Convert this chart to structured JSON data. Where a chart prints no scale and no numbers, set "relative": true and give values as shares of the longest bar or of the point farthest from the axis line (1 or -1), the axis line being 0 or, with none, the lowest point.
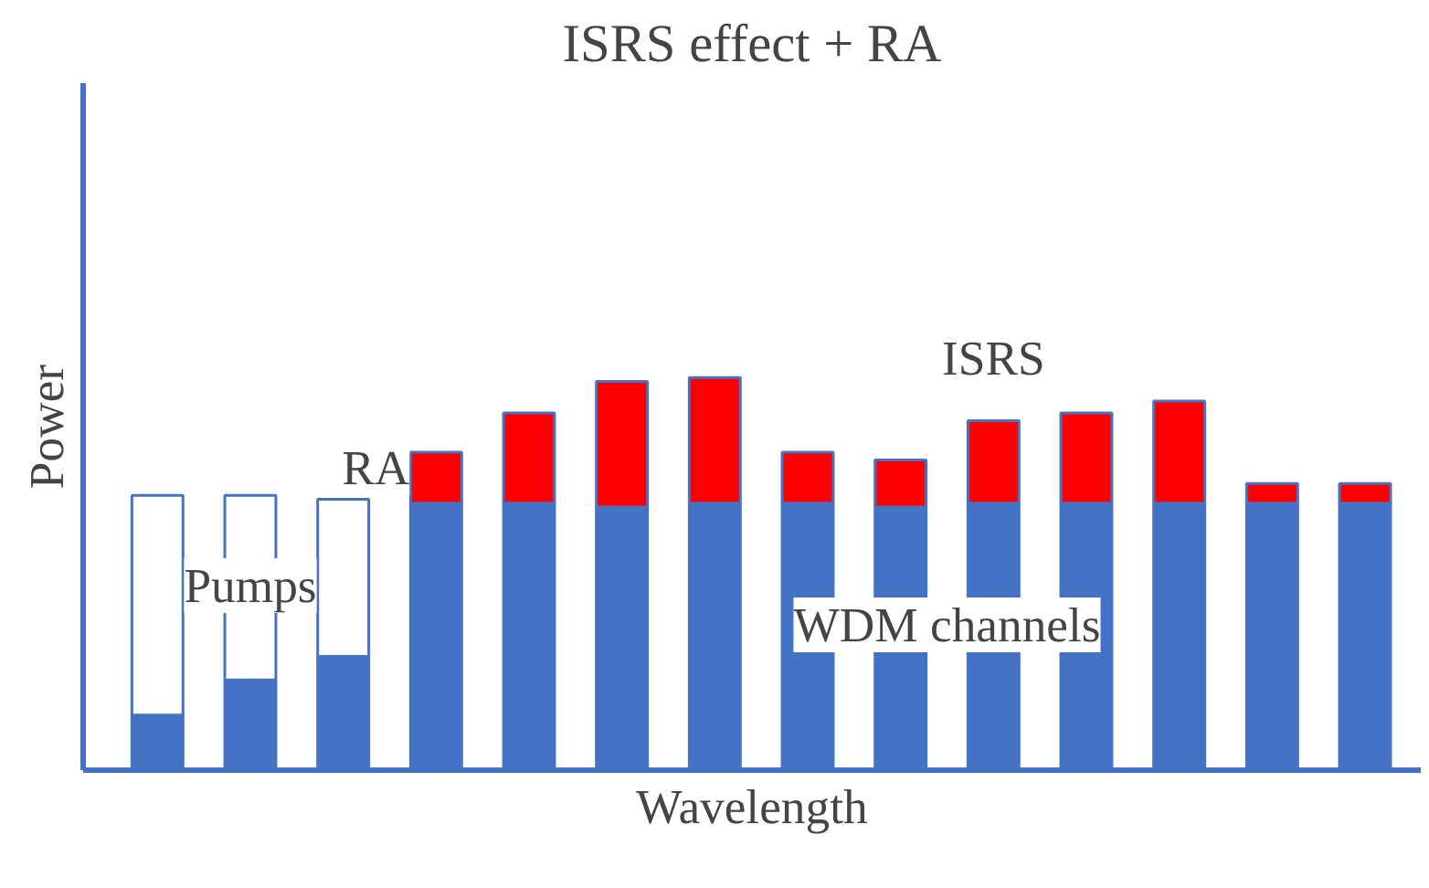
{
  "chart_data": {
    "type": "bar",
    "title": "ISRS effect + RA",
    "xlabel": "Wavelength",
    "ylabel": "Power",
    "relative": true,
    "stacked": true,
    "categories": [
      null,
      null,
      null,
      null,
      null,
      null,
      null,
      null,
      null,
      null,
      null,
      null,
      null,
      null
    ],
    "series": [
      {
        "color": "#4472c4",
        "values": [
          0.14,
          0.23,
          0.29,
          0.68,
          0.68,
          0.67,
          0.68,
          0.68,
          0.67,
          0.68,
          0.68,
          0.68,
          0.68,
          0.68
        ]
      },
      {
        "color": "#ffffff",
        "values": [
          0.56,
          0.47,
          0.4,
          null,
          null,
          null,
          null,
          null,
          null,
          null,
          null,
          null,
          null,
          null
        ]
      },
      {
        "color": "#ff0000",
        "values": [
          null,
          null,
          null,
          0.13,
          0.23,
          0.32,
          0.32,
          0.13,
          0.12,
          0.21,
          0.23,
          0.26,
          0.05,
          0.05
        ]
      }
    ],
    "annotations": [
      "Pumps",
      "WDM channels",
      "RA",
      "ISRS"
    ]
  }
}
